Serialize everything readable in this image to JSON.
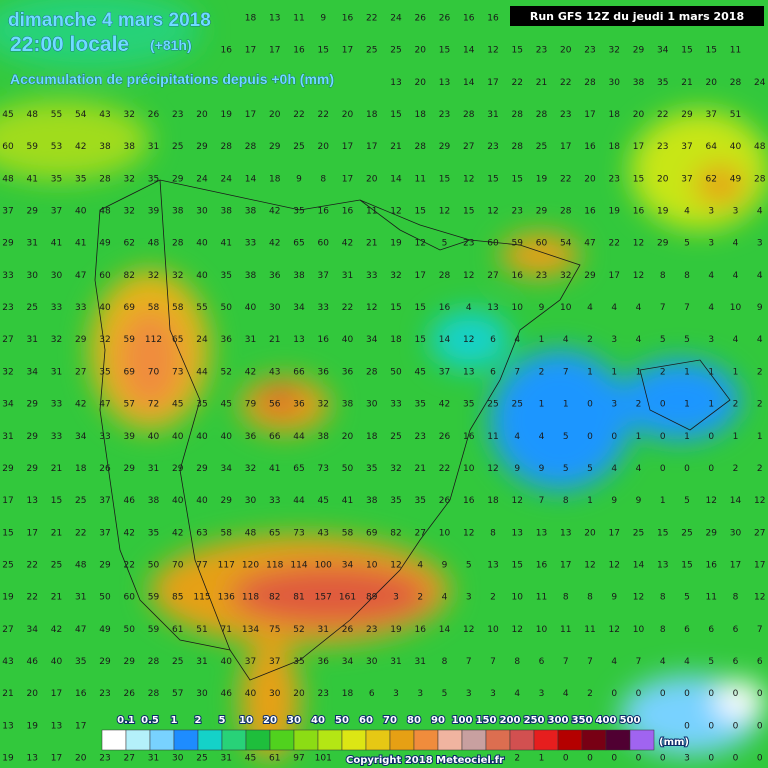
{
  "header": {
    "title": "dimanche 4 mars 2018",
    "time": "22:00 locale",
    "lead": "(+81h)",
    "subtitle": "Accumulation de précipitations depuis +0h (mm)",
    "run": "Run GFS 12Z du jeudi 1 mars 2018"
  },
  "grid": {
    "rows": [
      [
        null,
        null,
        null,
        null,
        null,
        null,
        null,
        null,
        null,
        null,
        18,
        13,
        11,
        9,
        16,
        22,
        24,
        26,
        26,
        16,
        16,
        null,
        null,
        null,
        null,
        null,
        null,
        null,
        null,
        null,
        null,
        null
      ],
      [
        null,
        null,
        null,
        null,
        null,
        null,
        null,
        null,
        null,
        16,
        17,
        17,
        16,
        15,
        17,
        25,
        25,
        20,
        15,
        14,
        12,
        15,
        23,
        20,
        23,
        32,
        29,
        34,
        15,
        15,
        11,
        null
      ],
      [
        null,
        null,
        null,
        null,
        null,
        null,
        null,
        null,
        null,
        null,
        null,
        null,
        null,
        null,
        null,
        null,
        13,
        20,
        13,
        14,
        17,
        22,
        21,
        22,
        28,
        30,
        38,
        35,
        21,
        20,
        28,
        24
      ],
      [
        45,
        48,
        55,
        54,
        43,
        32,
        26,
        23,
        20,
        19,
        17,
        20,
        22,
        22,
        20,
        18,
        15,
        18,
        23,
        28,
        31,
        28,
        28,
        23,
        17,
        18,
        20,
        22,
        29,
        37,
        51,
        null
      ],
      [
        60,
        59,
        53,
        42,
        38,
        38,
        31,
        25,
        29,
        28,
        28,
        29,
        25,
        20,
        17,
        17,
        21,
        28,
        29,
        27,
        23,
        28,
        25,
        17,
        16,
        18,
        17,
        23,
        37,
        64,
        40,
        48
      ],
      [
        48,
        41,
        35,
        35,
        28,
        32,
        35,
        29,
        24,
        24,
        14,
        18,
        9,
        8,
        17,
        20,
        14,
        11,
        15,
        12,
        15,
        15,
        19,
        22,
        20,
        23,
        15,
        20,
        37,
        62,
        49,
        28
      ],
      [
        37,
        29,
        37,
        40,
        48,
        32,
        39,
        38,
        30,
        38,
        38,
        42,
        35,
        16,
        16,
        11,
        12,
        15,
        12,
        15,
        12,
        23,
        29,
        28,
        16,
        19,
        16,
        19,
        4,
        3,
        3,
        4
      ],
      [
        29,
        31,
        41,
        41,
        49,
        62,
        48,
        28,
        40,
        41,
        33,
        42,
        65,
        60,
        42,
        21,
        19,
        12,
        5,
        23,
        60,
        59,
        60,
        54,
        47,
        22,
        12,
        29,
        5,
        3,
        4,
        3
      ],
      [
        33,
        30,
        30,
        47,
        60,
        82,
        32,
        32,
        40,
        35,
        38,
        36,
        38,
        37,
        31,
        33,
        32,
        17,
        28,
        12,
        27,
        16,
        23,
        32,
        29,
        17,
        12,
        8,
        8,
        4,
        4,
        4
      ],
      [
        23,
        25,
        33,
        33,
        40,
        69,
        58,
        58,
        55,
        50,
        40,
        30,
        34,
        33,
        22,
        12,
        15,
        15,
        16,
        4,
        13,
        10,
        9,
        10,
        4,
        4,
        4,
        7,
        7,
        4,
        10,
        9
      ],
      [
        27,
        31,
        32,
        29,
        32,
        59,
        112,
        65,
        24,
        36,
        31,
        21,
        13,
        16,
        40,
        34,
        18,
        15,
        14,
        12,
        6,
        4,
        1,
        4,
        2,
        3,
        4,
        5,
        5,
        3,
        4,
        4
      ],
      [
        32,
        34,
        31,
        27,
        35,
        69,
        70,
        73,
        44,
        52,
        42,
        43,
        66,
        36,
        36,
        28,
        50,
        45,
        37,
        13,
        6,
        7,
        2,
        7,
        1,
        1,
        1,
        2,
        1,
        1,
        1,
        2
      ],
      [
        34,
        29,
        33,
        42,
        47,
        57,
        72,
        45,
        35,
        45,
        79,
        56,
        36,
        32,
        38,
        30,
        33,
        35,
        42,
        35,
        25,
        25,
        1,
        1,
        0,
        3,
        2,
        0,
        1,
        1,
        2,
        2
      ],
      [
        31,
        29,
        33,
        34,
        33,
        39,
        40,
        40,
        40,
        40,
        36,
        66,
        44,
        38,
        20,
        18,
        25,
        23,
        26,
        16,
        11,
        4,
        4,
        5,
        0,
        0,
        1,
        0,
        1,
        0,
        1,
        1
      ],
      [
        29,
        29,
        21,
        18,
        26,
        29,
        31,
        29,
        29,
        34,
        32,
        41,
        65,
        73,
        50,
        35,
        32,
        21,
        22,
        10,
        12,
        9,
        9,
        5,
        5,
        4,
        4,
        0,
        0,
        0,
        2,
        2
      ],
      [
        17,
        13,
        15,
        25,
        37,
        46,
        38,
        40,
        40,
        29,
        30,
        33,
        44,
        45,
        41,
        38,
        35,
        35,
        26,
        16,
        18,
        12,
        7,
        8,
        1,
        9,
        9,
        1,
        5,
        12,
        14,
        12
      ],
      [
        15,
        17,
        21,
        22,
        37,
        42,
        35,
        42,
        63,
        58,
        48,
        65,
        73,
        43,
        58,
        69,
        82,
        27,
        10,
        12,
        8,
        13,
        13,
        13,
        20,
        17,
        25,
        15,
        25,
        29,
        30,
        27
      ],
      [
        25,
        22,
        25,
        48,
        29,
        22,
        50,
        70,
        77,
        117,
        120,
        118,
        114,
        100,
        34,
        10,
        12,
        4,
        9,
        5,
        13,
        15,
        16,
        17,
        12,
        12,
        14,
        13,
        15,
        16,
        17,
        17
      ],
      [
        19,
        22,
        21,
        31,
        50,
        60,
        59,
        85,
        115,
        136,
        118,
        82,
        81,
        157,
        161,
        89,
        3,
        2,
        4,
        3,
        2,
        10,
        11,
        8,
        8,
        9,
        12,
        8,
        5,
        11,
        8,
        12
      ],
      [
        27,
        34,
        42,
        47,
        49,
        50,
        59,
        61,
        51,
        71,
        134,
        75,
        52,
        31,
        26,
        23,
        19,
        16,
        14,
        12,
        10,
        12,
        10,
        11,
        11,
        12,
        10,
        8,
        6,
        6,
        6,
        7
      ],
      [
        43,
        46,
        40,
        35,
        29,
        29,
        28,
        25,
        31,
        40,
        37,
        37,
        35,
        36,
        34,
        30,
        31,
        31,
        8,
        7,
        7,
        8,
        6,
        7,
        7,
        4,
        7,
        4,
        4,
        5,
        6,
        6
      ],
      [
        21,
        20,
        17,
        16,
        23,
        26,
        28,
        57,
        30,
        46,
        40,
        30,
        20,
        23,
        18,
        6,
        3,
        3,
        5,
        3,
        3,
        4,
        3,
        4,
        2,
        0,
        0,
        0,
        0,
        0,
        0,
        0
      ],
      [
        13,
        19,
        13,
        17,
        null,
        null,
        null,
        null,
        null,
        null,
        null,
        null,
        null,
        null,
        null,
        null,
        null,
        null,
        null,
        null,
        null,
        null,
        null,
        null,
        null,
        null,
        null,
        null,
        0,
        0,
        0,
        0
      ],
      [
        19,
        13,
        17,
        20,
        23,
        27,
        31,
        30,
        25,
        31,
        45,
        61,
        97,
        101,
        null,
        null,
        null,
        null,
        null,
        null,
        null,
        2,
        1,
        0,
        0,
        0,
        0,
        0,
        3,
        0,
        0,
        0
      ]
    ]
  },
  "legend": {
    "labels": [
      0.1,
      0.5,
      1,
      2,
      5,
      10,
      20,
      30,
      40,
      50,
      60,
      70,
      80,
      90,
      100,
      150,
      200,
      250,
      300,
      350,
      400,
      500
    ],
    "unit": "(mm)",
    "colors": [
      "#ffffff",
      "#b4f0fa",
      "#78d2ff",
      "#1e8cff",
      "#14d2c8",
      "#28d278",
      "#1ebe3c",
      "#50d21e",
      "#8cdc14",
      "#b4e614",
      "#dce614",
      "#e6c814",
      "#e6a014",
      "#f08c3c",
      "#f0b4a0",
      "#c8a0a0",
      "#dc6e50",
      "#d25050",
      "#e61e1e",
      "#b40000",
      "#780014",
      "#500032",
      "#a064f0"
    ]
  },
  "footer": {
    "copyright": "Copyright 2018 Meteociel.fr"
  }
}
